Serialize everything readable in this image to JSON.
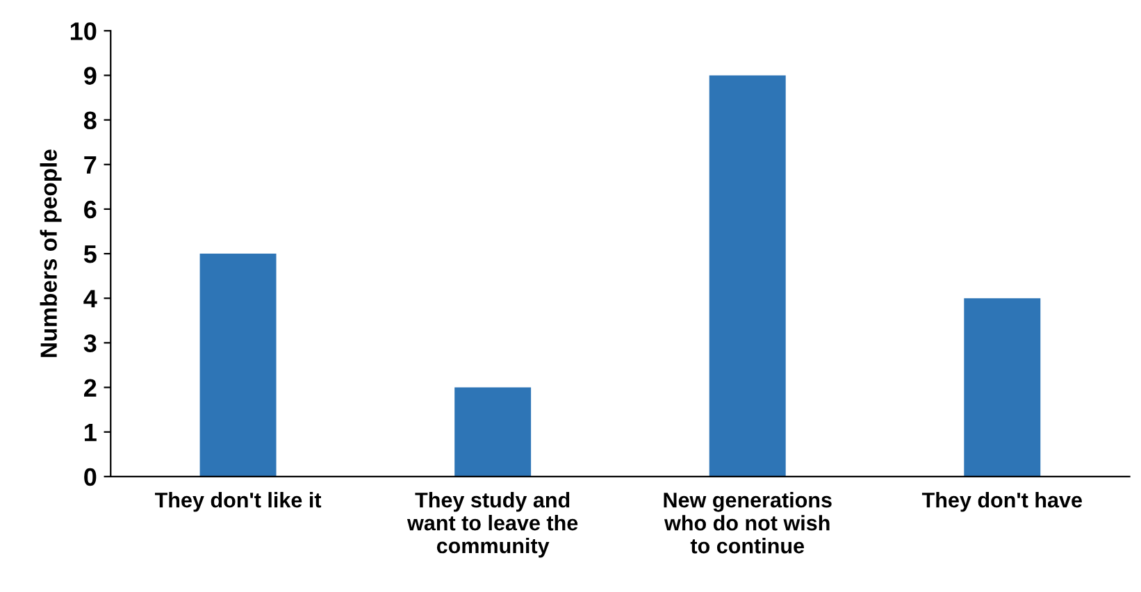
{
  "chart_data": {
    "type": "bar",
    "ylabel": "Numbers of people",
    "categories": [
      "They don't like it",
      "They study and\nwant to leave the\ncommunity",
      "New generations\nwho do not wish\nto continue",
      "They don't have"
    ],
    "values": [
      5,
      2,
      9,
      4
    ],
    "color": "#2e75b6",
    "ylim": [
      0,
      10
    ],
    "yticks": [
      0,
      1,
      2,
      3,
      4,
      5,
      6,
      7,
      8,
      9,
      10
    ],
    "grid": false
  }
}
